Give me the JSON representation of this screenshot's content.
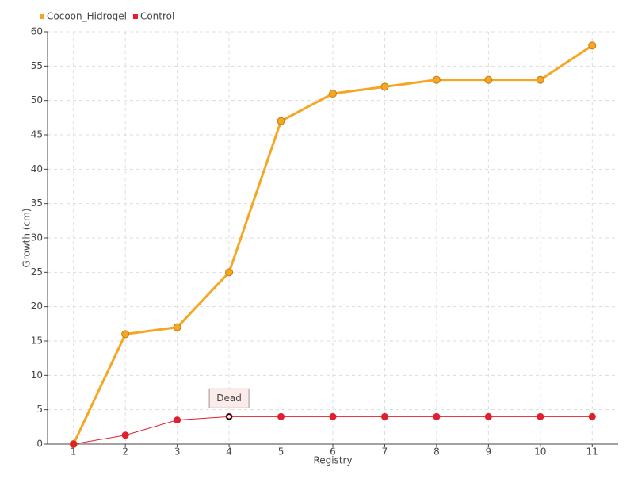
{
  "chart_data": {
    "type": "line",
    "x_label": "Registry",
    "y_label": "Growth (cm)",
    "categories": [
      "1",
      "2",
      "3",
      "4",
      "5",
      "6",
      "7",
      "8",
      "9",
      "10",
      "11"
    ],
    "series": [
      {
        "name": "Cocoon_Hidrogel",
        "color": "#f5a623",
        "values": [
          0,
          16,
          17,
          25,
          47,
          51,
          52,
          53,
          53,
          53,
          58
        ]
      },
      {
        "name": "Control",
        "color": "#e0202e",
        "values": [
          0,
          1.3,
          3.5,
          4,
          4,
          4,
          4,
          4,
          4,
          4,
          4
        ]
      }
    ],
    "ylim": [
      0,
      60
    ],
    "yticks": [
      0,
      5,
      10,
      15,
      20,
      25,
      30,
      35,
      40,
      45,
      50,
      55,
      60
    ],
    "grid": true,
    "annotations": [
      {
        "label": "Dead",
        "category": "4",
        "series": "Control"
      }
    ]
  }
}
